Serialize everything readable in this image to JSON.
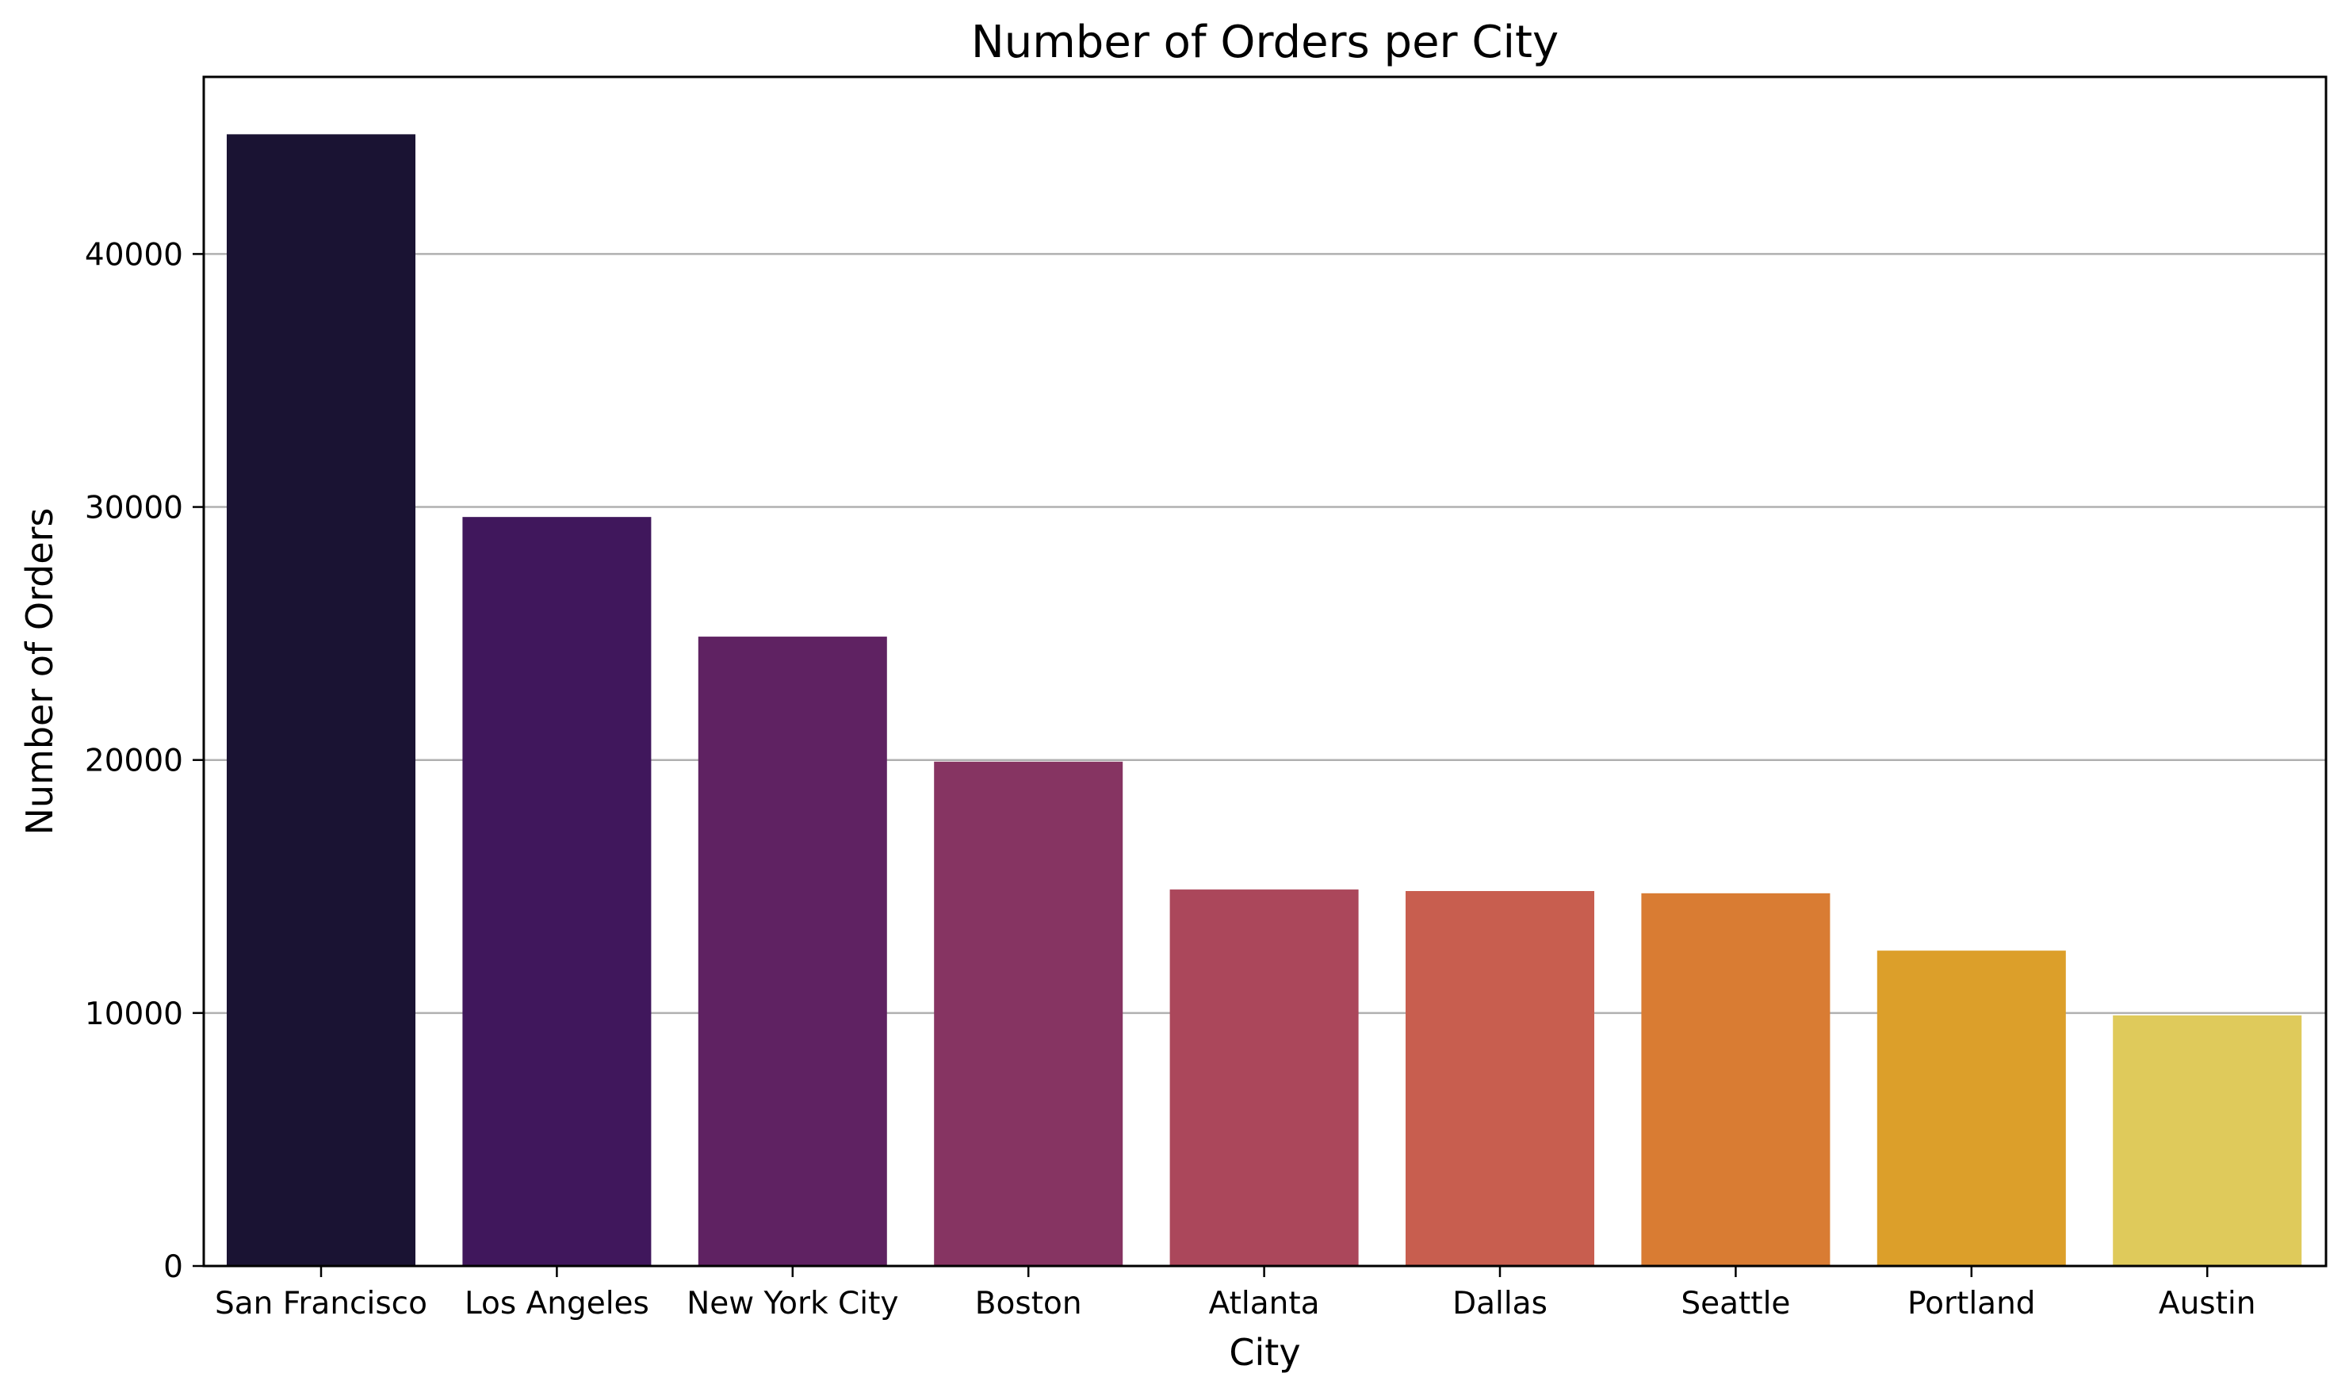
{
  "chart_data": {
    "type": "bar",
    "title": "Number of Orders per City",
    "xlabel": "City",
    "ylabel": "Number of Orders",
    "categories": [
      "San Francisco",
      "Los Angeles",
      "New York City",
      "Boston",
      "Atlanta",
      "Dallas",
      "Seattle",
      "Portland",
      "Austin"
    ],
    "values": [
      44732,
      29605,
      24876,
      19934,
      14881,
      14820,
      14732,
      12465,
      9905
    ],
    "colors": [
      "#1a1333",
      "#40175c",
      "#5f2262",
      "#863462",
      "#ab475b",
      "#c85e4f",
      "#d97c33",
      "#dc9f2a",
      "#dfca5b"
    ],
    "ylim": [
      0,
      47000
    ],
    "yticks": [
      0,
      10000,
      20000,
      30000,
      40000
    ],
    "grid": true,
    "grid_axis": "y",
    "legend": "none"
  }
}
